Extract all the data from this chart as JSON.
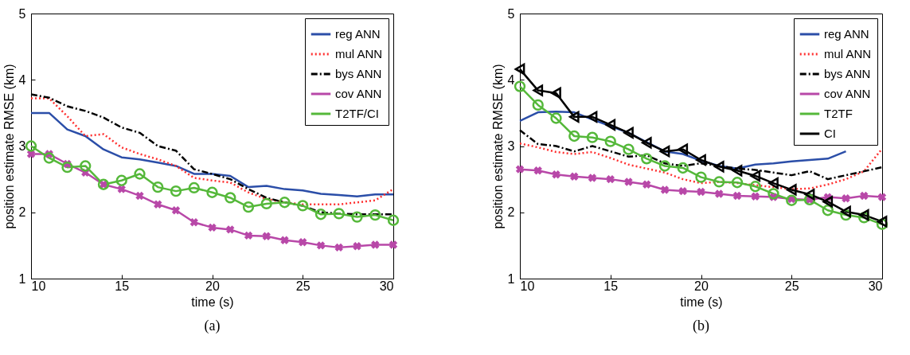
{
  "chart_data": [
    {
      "type": "line",
      "xlabel": "time (s)",
      "ylabel": "position estimate RMSE (km)",
      "annotations": [
        "(a)"
      ],
      "x": [
        10,
        11,
        12,
        13,
        14,
        15,
        16,
        17,
        18,
        19,
        20,
        21,
        22,
        23,
        24,
        25,
        26,
        27,
        28,
        29,
        30
      ],
      "xlim": [
        10,
        30
      ],
      "xticks": [
        10,
        15,
        20,
        25,
        30
      ],
      "ylim": [
        1,
        5
      ],
      "yticks": [
        1,
        2,
        3,
        4,
        5
      ],
      "legend": "top right",
      "series": [
        {
          "name": "reg ANN",
          "color": "#2b4ea8",
          "line_style": "solid",
          "marker": "none",
          "values": [
            3.5,
            3.5,
            3.25,
            3.15,
            2.95,
            2.83,
            2.8,
            2.75,
            2.7,
            2.58,
            2.58,
            2.55,
            2.38,
            2.4,
            2.35,
            2.33,
            2.28,
            2.26,
            2.24,
            2.27,
            2.27
          ]
        },
        {
          "name": "mul ANN",
          "color": "#ff3030",
          "line_style": "dotted",
          "marker": "none",
          "values": [
            3.72,
            3.72,
            3.45,
            3.15,
            3.18,
            2.98,
            2.88,
            2.8,
            2.7,
            2.52,
            2.48,
            2.45,
            2.3,
            2.2,
            2.15,
            2.12,
            2.12,
            2.12,
            2.15,
            2.18,
            2.35
          ]
        },
        {
          "name": "bys ANN",
          "color": "#000000",
          "line_style": "dashed",
          "marker": "none",
          "values": [
            3.78,
            3.73,
            3.6,
            3.53,
            3.43,
            3.28,
            3.2,
            3.0,
            2.93,
            2.65,
            2.58,
            2.5,
            2.35,
            2.22,
            2.15,
            2.1,
            2.0,
            1.98,
            1.97,
            1.97,
            1.97
          ]
        },
        {
          "name": "cov ANN",
          "color": "#b848a8",
          "line_style": "solid",
          "marker": "cross",
          "values": [
            2.88,
            2.88,
            2.73,
            2.6,
            2.42,
            2.35,
            2.25,
            2.12,
            2.03,
            1.85,
            1.77,
            1.74,
            1.65,
            1.64,
            1.58,
            1.55,
            1.5,
            1.47,
            1.49,
            1.51,
            1.51
          ]
        },
        {
          "name": "T2TF/CI",
          "color": "#55b83a",
          "line_style": "solid",
          "marker": "circle",
          "values": [
            3.0,
            2.82,
            2.68,
            2.7,
            2.42,
            2.48,
            2.58,
            2.38,
            2.32,
            2.37,
            2.3,
            2.22,
            2.08,
            2.13,
            2.15,
            2.1,
            1.97,
            1.98,
            1.93,
            1.96,
            1.88
          ]
        }
      ]
    },
    {
      "type": "line",
      "xlabel": "time (s)",
      "ylabel": "position estimate RMSE (km)",
      "annotations": [
        "(b)"
      ],
      "x": [
        10,
        11,
        12,
        13,
        14,
        15,
        16,
        17,
        18,
        19,
        20,
        21,
        22,
        23,
        24,
        25,
        26,
        27,
        28,
        29,
        30
      ],
      "xlim": [
        10,
        30
      ],
      "xticks": [
        10,
        15,
        20,
        25,
        30
      ],
      "ylim": [
        1,
        5
      ],
      "yticks": [
        1,
        2,
        3,
        4,
        5
      ],
      "legend": "top right",
      "series": [
        {
          "name": "reg ANN",
          "color": "#2b4ea8",
          "line_style": "solid",
          "marker": "none",
          "values": [
            3.38,
            3.51,
            3.52,
            3.51,
            3.4,
            3.3,
            3.2,
            3.06,
            2.92,
            2.88,
            2.78,
            2.7,
            2.66,
            2.72,
            2.74,
            2.77,
            2.79,
            2.81,
            2.92,
            null,
            null
          ]
        },
        {
          "name": "mul ANN",
          "color": "#ff3030",
          "line_style": "dotted",
          "marker": "none",
          "values": [
            3.04,
            2.98,
            2.91,
            2.88,
            2.91,
            2.82,
            2.72,
            2.66,
            2.6,
            2.5,
            2.44,
            2.46,
            2.44,
            2.41,
            2.38,
            2.35,
            2.36,
            2.42,
            2.5,
            2.62,
            2.96
          ]
        },
        {
          "name": "bys ANN",
          "color": "#000000",
          "line_style": "dashed",
          "marker": "none",
          "values": [
            3.24,
            3.03,
            3.0,
            2.92,
            3.0,
            2.92,
            2.84,
            2.86,
            2.74,
            2.7,
            2.74,
            2.7,
            2.66,
            2.64,
            2.6,
            2.56,
            2.62,
            2.5,
            2.56,
            2.62,
            2.68
          ]
        },
        {
          "name": "cov ANN",
          "color": "#b848a8",
          "line_style": "solid",
          "marker": "cross",
          "values": [
            2.65,
            2.63,
            2.57,
            2.54,
            2.52,
            2.5,
            2.46,
            2.42,
            2.34,
            2.32,
            2.31,
            2.28,
            2.25,
            2.24,
            2.23,
            2.2,
            2.19,
            2.23,
            2.21,
            2.25,
            2.23
          ]
        },
        {
          "name": "T2TF",
          "color": "#55b83a",
          "line_style": "solid",
          "marker": "circle",
          "values": [
            3.9,
            3.62,
            3.42,
            3.15,
            3.13,
            3.07,
            2.95,
            2.81,
            2.7,
            2.67,
            2.53,
            2.46,
            2.45,
            2.39,
            2.28,
            2.18,
            2.19,
            2.03,
            1.96,
            1.92,
            1.82
          ]
        },
        {
          "name": "CI",
          "color": "#000000",
          "line_style": "solid",
          "marker": "triangle",
          "values": [
            4.16,
            3.84,
            3.8,
            3.44,
            3.44,
            3.32,
            3.2,
            3.05,
            2.92,
            2.95,
            2.79,
            2.69,
            2.63,
            2.55,
            2.44,
            2.34,
            2.27,
            2.16,
            2.01,
            1.96,
            1.86
          ]
        }
      ]
    }
  ]
}
